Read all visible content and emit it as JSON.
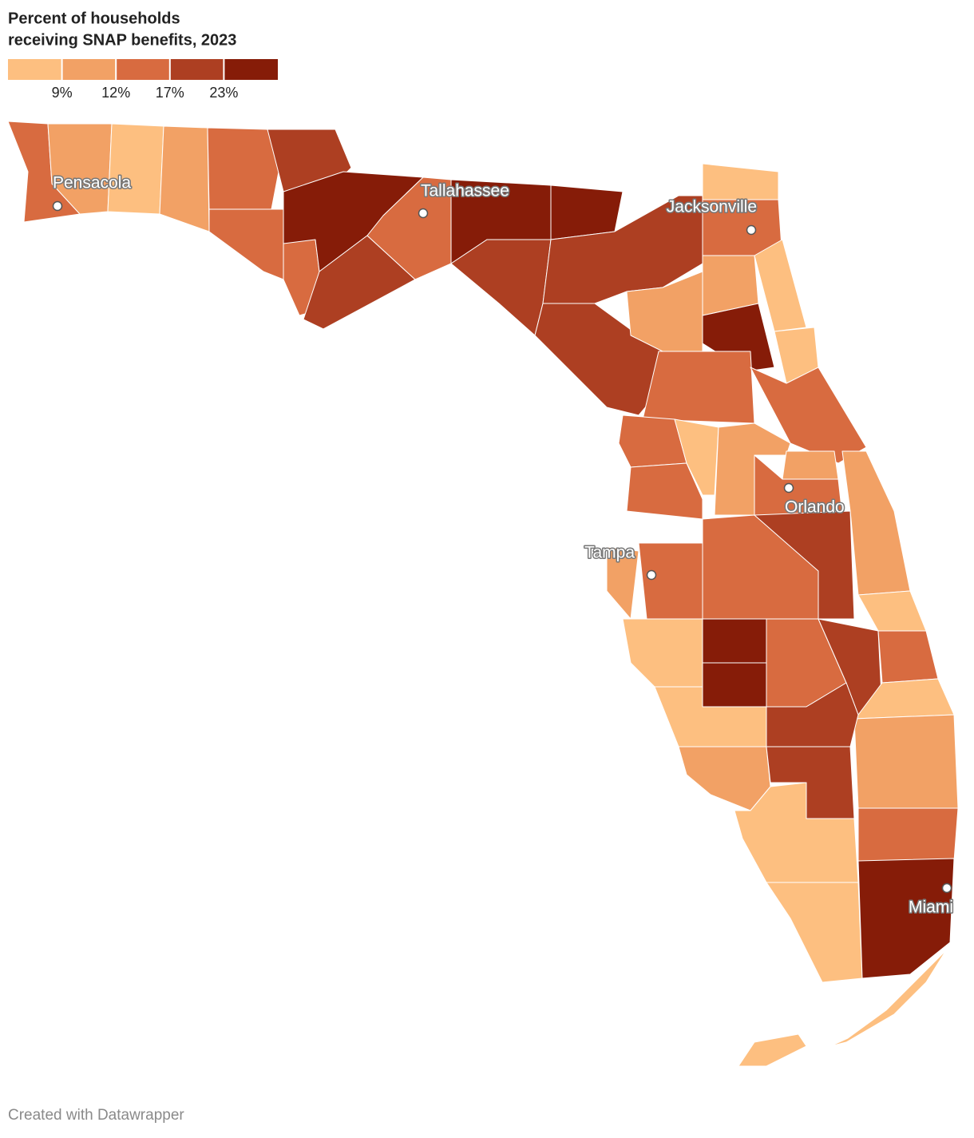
{
  "header": {
    "title_lines": [
      "Percent of households",
      "receiving SNAP benefits, 2023"
    ]
  },
  "legend": {
    "colors": [
      "#fdbf80",
      "#f2a165",
      "#d86b40",
      "#ad3f22",
      "#861c08"
    ],
    "ticks": [
      {
        "value": 9,
        "label": "9%"
      },
      {
        "value": 12,
        "label": "12%"
      },
      {
        "value": 17,
        "label": "17%"
      },
      {
        "value": 23,
        "label": "23%"
      }
    ]
  },
  "cities": [
    {
      "label": "Pensacola"
    },
    {
      "label": "Tallahassee"
    },
    {
      "label": "Jacksonville"
    },
    {
      "label": "Orlando"
    },
    {
      "label": "Tampa"
    },
    {
      "label": "Miami"
    }
  ],
  "footer": "Created with Datawrapper"
}
